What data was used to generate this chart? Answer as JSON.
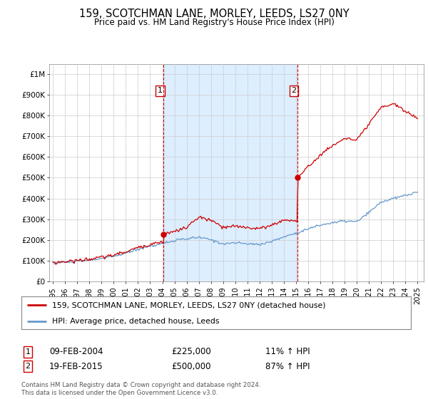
{
  "title": "159, SCOTCHMAN LANE, MORLEY, LEEDS, LS27 0NY",
  "subtitle": "Price paid vs. HM Land Registry's House Price Index (HPI)",
  "legend_house": "159, SCOTCHMAN LANE, MORLEY, LEEDS, LS27 0NY (detached house)",
  "legend_hpi": "HPI: Average price, detached house, Leeds",
  "footnote": "Contains HM Land Registry data © Crown copyright and database right 2024.\nThis data is licensed under the Open Government Licence v3.0.",
  "sale1_date": "09-FEB-2004",
  "sale1_price": "£225,000",
  "sale1_hpi": "11% ↑ HPI",
  "sale2_date": "19-FEB-2015",
  "sale2_price": "£500,000",
  "sale2_hpi": "87% ↑ HPI",
  "house_color": "#cc0000",
  "hpi_color": "#6699cc",
  "shade_color": "#ddeeff",
  "vline_color": "#cc0000",
  "ylim": [
    0,
    1050000
  ],
  "yticks": [
    0,
    100000,
    200000,
    300000,
    400000,
    500000,
    600000,
    700000,
    800000,
    900000,
    1000000
  ],
  "sale1_year": 2004.11,
  "sale1_value": 225000,
  "sale2_year": 2015.12,
  "sale2_value": 500000
}
